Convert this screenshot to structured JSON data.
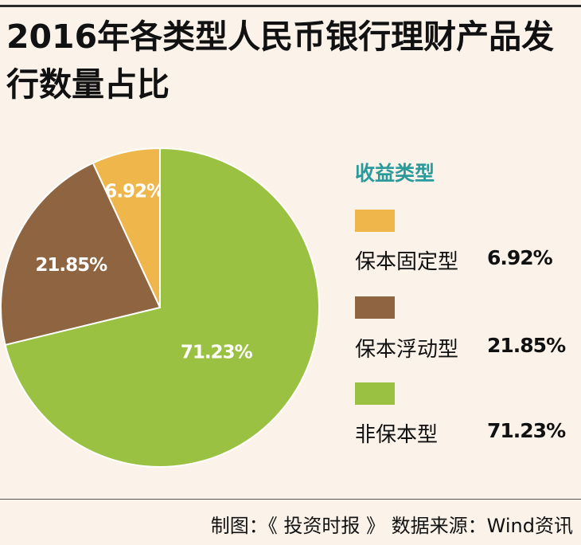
{
  "title": "2016年各类型人民币银行理财产品发行数量占比",
  "legend_title": "收益类型",
  "footer": "制图：《 投资时报 》 数据来源：Wind资讯",
  "chart_data": {
    "type": "pie",
    "title": "2016年各类型人民币银行理财产品发行数量占比",
    "legend_title": "收益类型",
    "legend_placement": "right",
    "slices": [
      {
        "label": "保本固定型",
        "value": 6.92,
        "display": "6.92%",
        "color": "#efb64b"
      },
      {
        "label": "保本浮动型",
        "value": 21.85,
        "display": "21.85%",
        "color": "#8e6540"
      },
      {
        "label": "非保本型",
        "value": 71.23,
        "display": "71.23%",
        "color": "#9ac142"
      }
    ]
  }
}
